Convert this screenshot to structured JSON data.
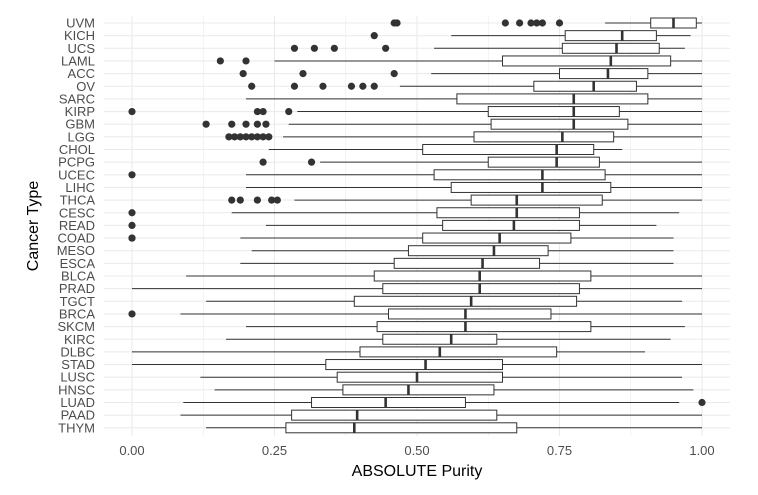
{
  "chart_data": {
    "type": "boxplot",
    "title": "",
    "xlabel": "ABSOLUTE Purity",
    "ylabel": "Cancer Type",
    "xlim": [
      0,
      1
    ],
    "x_ticks": [
      0,
      0.25,
      0.5,
      0.75,
      1
    ],
    "x_tick_labels": [
      "0.00",
      "0.25",
      "0.50",
      "0.75",
      "1.00"
    ],
    "grid": true,
    "colors": {
      "box_fill": "#ffffff",
      "stroke": "#333333",
      "grid": "#ebebeb",
      "point": "#333333"
    },
    "categories": [
      "UVM",
      "KICH",
      "UCS",
      "LAML",
      "ACC",
      "OV",
      "SARC",
      "KIRP",
      "GBM",
      "LGG",
      "CHOL",
      "PCPG",
      "UCEC",
      "LIHC",
      "THCA",
      "CESC",
      "READ",
      "COAD",
      "MESO",
      "ESCA",
      "BLCA",
      "PRAD",
      "TGCT",
      "BRCA",
      "SKCM",
      "KIRC",
      "DLBC",
      "STAD",
      "LUSC",
      "HNSC",
      "LUAD",
      "PAAD",
      "THYM"
    ],
    "boxes": [
      {
        "label": "UVM",
        "whisker_low": 0.83,
        "q1": 0.91,
        "median": 0.95,
        "q3": 0.99,
        "whisker_high": 1.0,
        "outliers": [
          0.46,
          0.465,
          0.655,
          0.68,
          0.7,
          0.71,
          0.72,
          0.75
        ]
      },
      {
        "label": "KICH",
        "whisker_low": 0.56,
        "q1": 0.76,
        "median": 0.86,
        "q3": 0.92,
        "whisker_high": 0.98,
        "outliers": [
          0.425
        ]
      },
      {
        "label": "UCS",
        "whisker_low": 0.53,
        "q1": 0.755,
        "median": 0.85,
        "q3": 0.925,
        "whisker_high": 0.97,
        "outliers": [
          0.285,
          0.32,
          0.355,
          0.445
        ]
      },
      {
        "label": "LAML",
        "whisker_low": 0.25,
        "q1": 0.65,
        "median": 0.84,
        "q3": 0.945,
        "whisker_high": 1.0,
        "outliers": [
          0.155,
          0.2
        ]
      },
      {
        "label": "ACC",
        "whisker_low": 0.525,
        "q1": 0.75,
        "median": 0.835,
        "q3": 0.905,
        "whisker_high": 1.0,
        "outliers": [
          0.195,
          0.3,
          0.46
        ]
      },
      {
        "label": "OV",
        "whisker_low": 0.47,
        "q1": 0.705,
        "median": 0.81,
        "q3": 0.885,
        "whisker_high": 1.0,
        "outliers": [
          0.21,
          0.285,
          0.335,
          0.385,
          0.405,
          0.425
        ]
      },
      {
        "label": "SARC",
        "whisker_low": 0.2,
        "q1": 0.57,
        "median": 0.775,
        "q3": 0.905,
        "whisker_high": 1.0,
        "outliers": []
      },
      {
        "label": "KIRP",
        "whisker_low": 0.29,
        "q1": 0.625,
        "median": 0.775,
        "q3": 0.855,
        "whisker_high": 1.0,
        "outliers": [
          0.0,
          0.22,
          0.23,
          0.275
        ]
      },
      {
        "label": "GBM",
        "whisker_low": 0.275,
        "q1": 0.63,
        "median": 0.775,
        "q3": 0.87,
        "whisker_high": 1.0,
        "outliers": [
          0.13,
          0.175,
          0.2,
          0.22,
          0.235
        ]
      },
      {
        "label": "LGG",
        "whisker_low": 0.265,
        "q1": 0.6,
        "median": 0.755,
        "q3": 0.845,
        "whisker_high": 1.0,
        "outliers": [
          0.17,
          0.18,
          0.19,
          0.2,
          0.21,
          0.22,
          0.23,
          0.24
        ]
      },
      {
        "label": "CHOL",
        "whisker_low": 0.24,
        "q1": 0.51,
        "median": 0.745,
        "q3": 0.81,
        "whisker_high": 0.86,
        "outliers": []
      },
      {
        "label": "PCPG",
        "whisker_low": 0.33,
        "q1": 0.625,
        "median": 0.745,
        "q3": 0.82,
        "whisker_high": 1.0,
        "outliers": [
          0.23,
          0.315
        ]
      },
      {
        "label": "UCEC",
        "whisker_low": 0.2,
        "q1": 0.53,
        "median": 0.72,
        "q3": 0.83,
        "whisker_high": 1.0,
        "outliers": [
          0.0
        ]
      },
      {
        "label": "LIHC",
        "whisker_low": 0.2,
        "q1": 0.56,
        "median": 0.72,
        "q3": 0.84,
        "whisker_high": 1.0,
        "outliers": []
      },
      {
        "label": "THCA",
        "whisker_low": 0.285,
        "q1": 0.595,
        "median": 0.675,
        "q3": 0.825,
        "whisker_high": 1.0,
        "outliers": [
          0.175,
          0.19,
          0.22,
          0.245,
          0.255
        ]
      },
      {
        "label": "CESC",
        "whisker_low": 0.175,
        "q1": 0.535,
        "median": 0.675,
        "q3": 0.785,
        "whisker_high": 0.96,
        "outliers": [
          0.0
        ]
      },
      {
        "label": "READ",
        "whisker_low": 0.235,
        "q1": 0.545,
        "median": 0.67,
        "q3": 0.785,
        "whisker_high": 0.92,
        "outliers": [
          0.0
        ]
      },
      {
        "label": "COAD",
        "whisker_low": 0.19,
        "q1": 0.51,
        "median": 0.645,
        "q3": 0.77,
        "whisker_high": 0.95,
        "outliers": [
          0.0,
          0.0
        ]
      },
      {
        "label": "MESO",
        "whisker_low": 0.21,
        "q1": 0.485,
        "median": 0.635,
        "q3": 0.73,
        "whisker_high": 0.95,
        "outliers": []
      },
      {
        "label": "ESCA",
        "whisker_low": 0.19,
        "q1": 0.46,
        "median": 0.615,
        "q3": 0.715,
        "whisker_high": 0.95,
        "outliers": []
      },
      {
        "label": "BLCA",
        "whisker_low": 0.095,
        "q1": 0.425,
        "median": 0.61,
        "q3": 0.805,
        "whisker_high": 1.0,
        "outliers": []
      },
      {
        "label": "PRAD",
        "whisker_low": 0.0,
        "q1": 0.44,
        "median": 0.61,
        "q3": 0.785,
        "whisker_high": 1.0,
        "outliers": []
      },
      {
        "label": "TGCT",
        "whisker_low": 0.13,
        "q1": 0.39,
        "median": 0.595,
        "q3": 0.78,
        "whisker_high": 0.965,
        "outliers": []
      },
      {
        "label": "BRCA",
        "whisker_low": 0.085,
        "q1": 0.45,
        "median": 0.585,
        "q3": 0.735,
        "whisker_high": 1.0,
        "outliers": [
          0.0
        ]
      },
      {
        "label": "SKCM",
        "whisker_low": 0.2,
        "q1": 0.43,
        "median": 0.585,
        "q3": 0.805,
        "whisker_high": 0.97,
        "outliers": []
      },
      {
        "label": "KIRC",
        "whisker_low": 0.165,
        "q1": 0.44,
        "median": 0.56,
        "q3": 0.64,
        "whisker_high": 0.945,
        "outliers": []
      },
      {
        "label": "DLBC",
        "whisker_low": 0.0,
        "q1": 0.4,
        "median": 0.54,
        "q3": 0.745,
        "whisker_high": 0.9,
        "outliers": []
      },
      {
        "label": "STAD",
        "whisker_low": 0.0,
        "q1": 0.34,
        "median": 0.515,
        "q3": 0.65,
        "whisker_high": 1.0,
        "outliers": []
      },
      {
        "label": "LUSC",
        "whisker_low": 0.12,
        "q1": 0.36,
        "median": 0.5,
        "q3": 0.65,
        "whisker_high": 0.965,
        "outliers": []
      },
      {
        "label": "HNSC",
        "whisker_low": 0.145,
        "q1": 0.37,
        "median": 0.485,
        "q3": 0.635,
        "whisker_high": 0.985,
        "outliers": []
      },
      {
        "label": "LUAD",
        "whisker_low": 0.09,
        "q1": 0.315,
        "median": 0.445,
        "q3": 0.585,
        "whisker_high": 0.96,
        "outliers": [
          1.0
        ]
      },
      {
        "label": "PAAD",
        "whisker_low": 0.085,
        "q1": 0.28,
        "median": 0.395,
        "q3": 0.64,
        "whisker_high": 1.0,
        "outliers": []
      },
      {
        "label": "THYM",
        "whisker_low": 0.13,
        "q1": 0.27,
        "median": 0.39,
        "q3": 0.675,
        "whisker_high": 1.0,
        "outliers": []
      }
    ]
  }
}
